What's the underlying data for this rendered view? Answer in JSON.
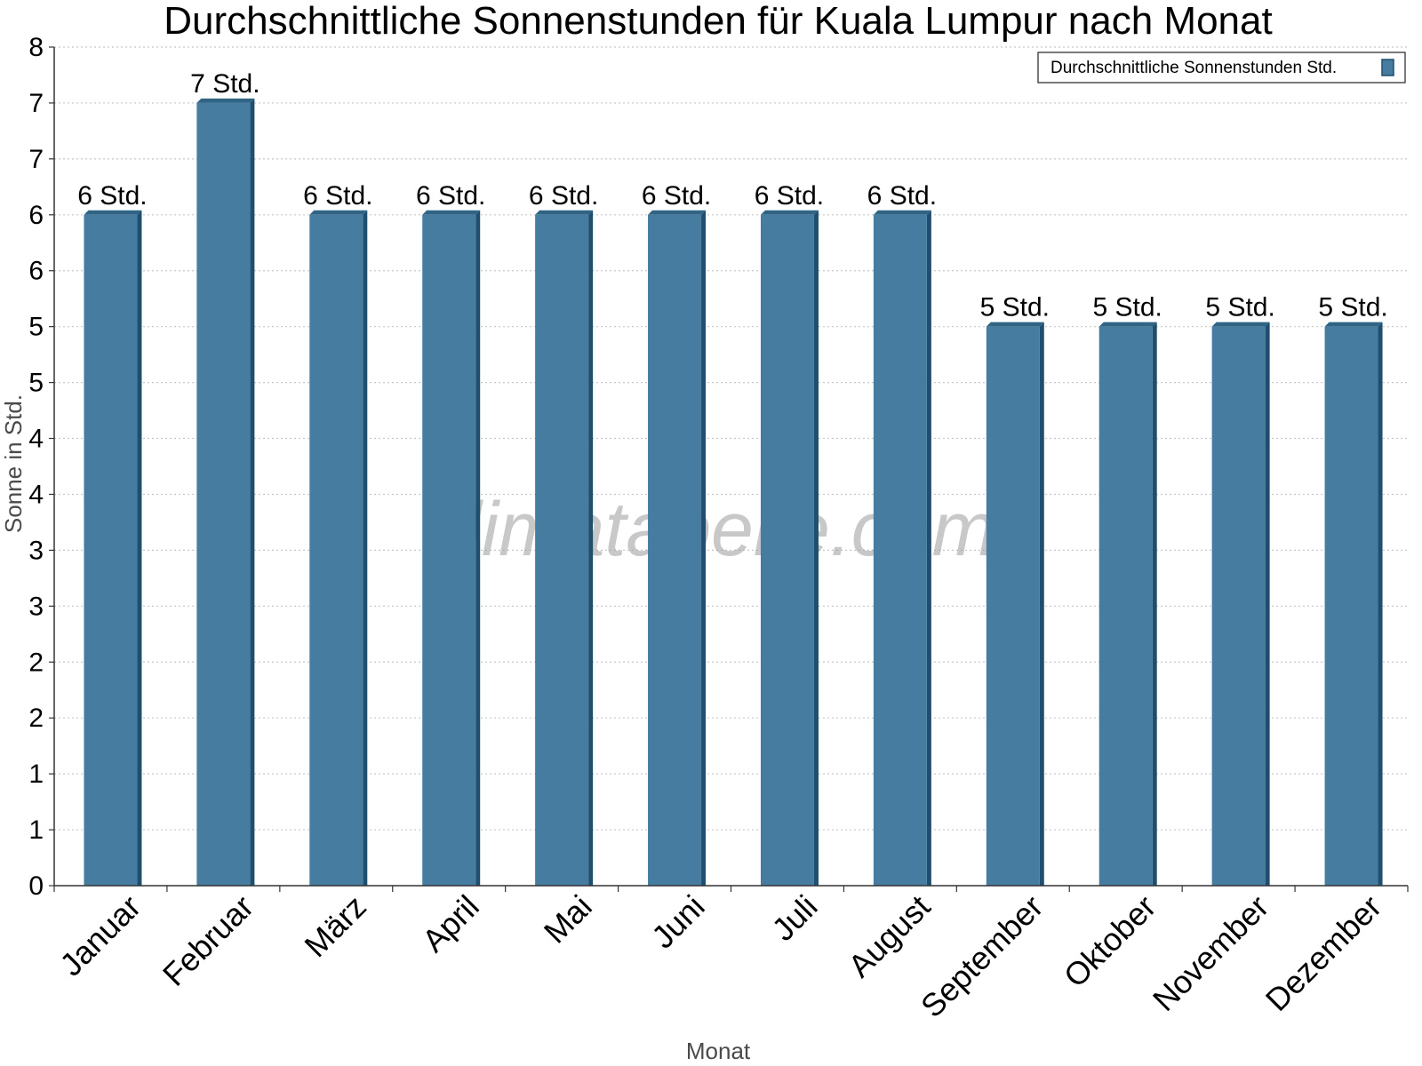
{
  "chart_data": {
    "type": "bar",
    "title": "Durchschnittliche Sonnenstunden für Kuala Lumpur nach Monat",
    "xlabel": "Monat",
    "ylabel": "Sonne in Std.",
    "categories": [
      "Januar",
      "Februar",
      "März",
      "April",
      "Mai",
      "Juni",
      "Juli",
      "August",
      "September",
      "Oktober",
      "November",
      "Dezember"
    ],
    "series": [
      {
        "name": "Durchschnittliche Sonnenstunden Std.",
        "values": [
          6,
          7,
          6,
          6,
          6,
          6,
          6,
          6,
          5,
          5,
          5,
          5
        ],
        "labels": [
          "6 Std.",
          "7 Std.",
          "6 Std.",
          "6 Std.",
          "6 Std.",
          "6 Std.",
          "6 Std.",
          "6 Std.",
          "5 Std.",
          "5 Std.",
          "5 Std.",
          "5 Std."
        ]
      }
    ],
    "ylim": [
      0,
      7.5
    ],
    "y_ticks": [
      0,
      0.5,
      1,
      1.5,
      2,
      2.5,
      3,
      3.5,
      4,
      4.5,
      5,
      5.5,
      6,
      6.5,
      7,
      7.5
    ],
    "y_tick_labels": [
      "0",
      "1",
      "1",
      "2",
      "2",
      "3",
      "3",
      "4",
      "4",
      "5",
      "5",
      "6",
      "6",
      "7",
      "7",
      "8"
    ],
    "grid": true,
    "legend_position": "top-right",
    "watermark": "klimatabelle.com",
    "colors": {
      "bar": "#467c9f",
      "bar_edge": "#1f4e6e",
      "bar_top": "#2f6485",
      "grid": "#c8c8c8"
    }
  }
}
